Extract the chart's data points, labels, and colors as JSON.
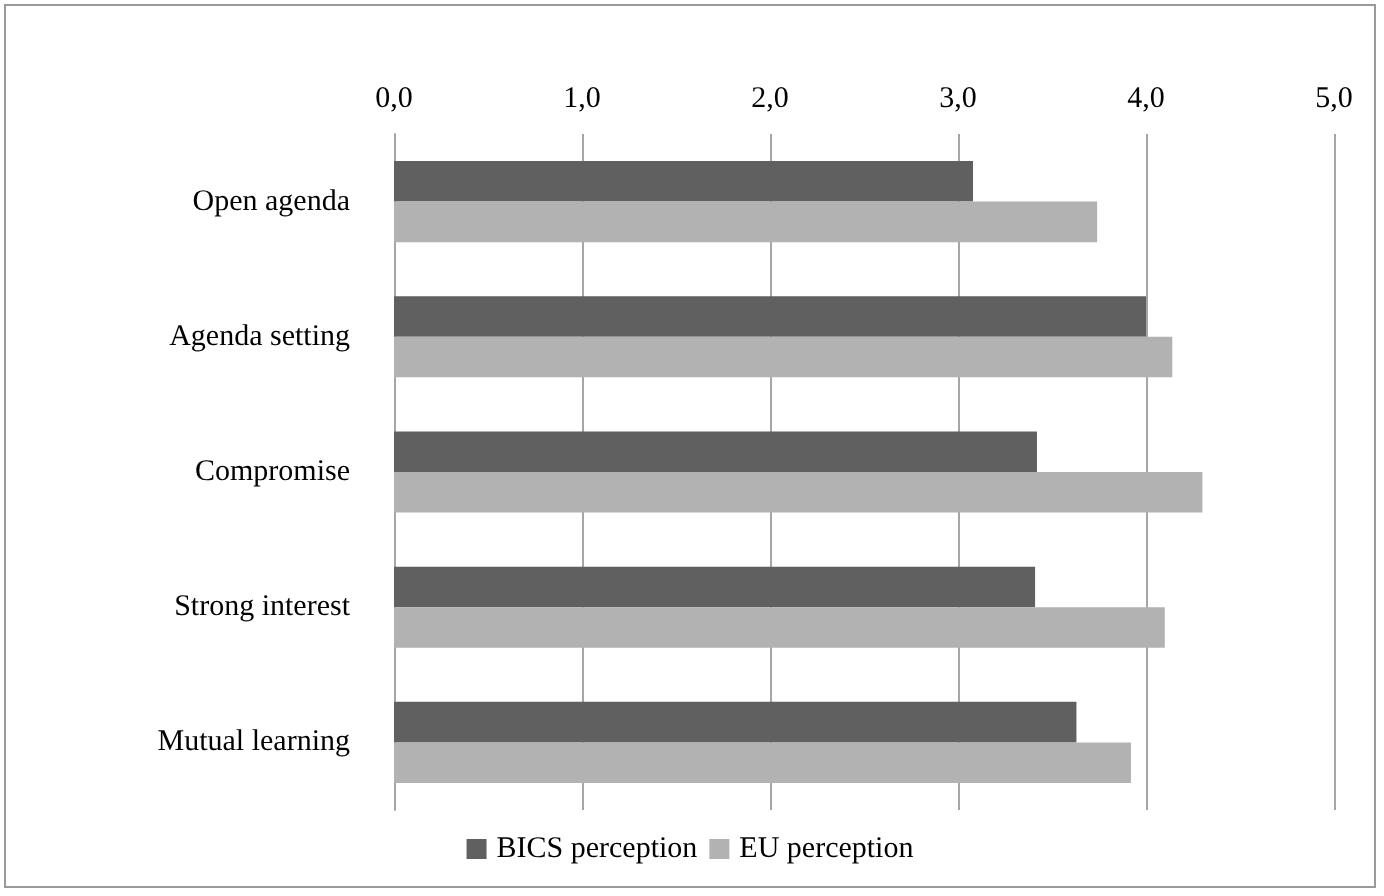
{
  "chart_data": {
    "type": "bar",
    "orientation": "horizontal",
    "categories": [
      "Open agenda",
      "Agenda setting",
      "Compromise",
      "Strong interest",
      "Mutual learning"
    ],
    "series": [
      {
        "name": "BICS perception",
        "color": "#606060",
        "values": [
          3.08,
          4.0,
          3.42,
          3.41,
          3.63
        ]
      },
      {
        "name": "EU perception",
        "color": "#b2b2b2",
        "values": [
          3.74,
          4.14,
          4.3,
          4.1,
          3.92
        ]
      }
    ],
    "xlim": [
      0,
      5
    ],
    "xticks": [
      {
        "value": 0,
        "label": "0,0"
      },
      {
        "value": 1,
        "label": "1,0"
      },
      {
        "value": 2,
        "label": "2,0"
      },
      {
        "value": 3,
        "label": "3,0"
      },
      {
        "value": 4,
        "label": "4,0"
      },
      {
        "value": 5,
        "label": "5,0"
      }
    ],
    "grid": "x",
    "legend": "bottom"
  }
}
